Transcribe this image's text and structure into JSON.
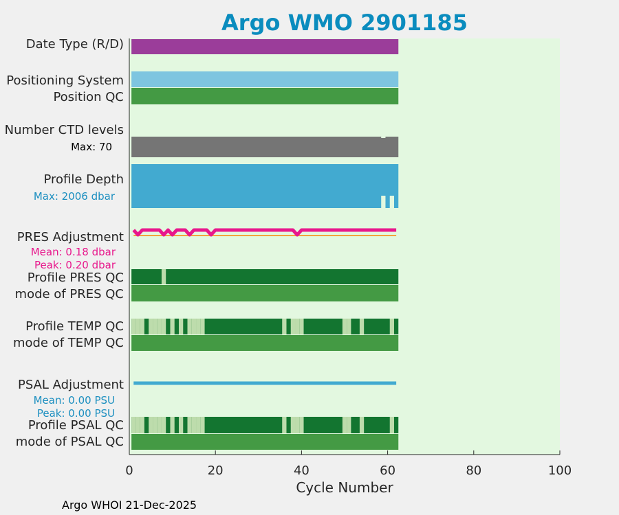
{
  "title": "Argo WMO 2901185",
  "footer": "Argo WHOI 21-Dec-2025",
  "colors": {
    "background": "#f0f0f0",
    "plot_bg": "#e3f8e0",
    "title": "#0a8cbe",
    "pres_note": "#e8178c",
    "psal_note": "#1c8fc0",
    "dark_green": "#137530",
    "mid_green": "#449a44",
    "light_green": "#bddcac"
  },
  "chart_data": {
    "type": "table",
    "xlabel": "Cycle Number",
    "xlim": [
      0,
      100
    ],
    "xticks": [
      "0",
      "20",
      "40",
      "60",
      "80",
      "100"
    ],
    "n_cycles": 62,
    "row_labels": {
      "date_type": "Date Type (R/D)",
      "positioning": "Positioning System",
      "position_qc": "Position QC",
      "ctd_levels": "Number CTD levels",
      "profile_depth": "Profile Depth",
      "pres_adjust": "PRES Adjustment",
      "profile_pres_qc": "Profile PRES QC",
      "mode_pres_qc": "mode of PRES QC",
      "profile_temp_qc": "Profile TEMP QC",
      "mode_temp_qc": "mode of TEMP QC",
      "psal_adjust": "PSAL Adjustment",
      "profile_psal_qc": "Profile PSAL QC",
      "mode_psal_qc": "mode of PSAL QC"
    },
    "notes": {
      "ctd_max": "Max: 70",
      "depth_max": "Max: 2006 dbar",
      "pres_mean": "Mean: 0.18 dbar",
      "pres_peak": "Peak: 0.20 dbar",
      "psal_mean": "Mean: 0.00 PSU",
      "psal_peak": "Peak: 0.00 PSU"
    },
    "date_type_color": "#9b3d9a",
    "positioning_color": "#7ec5e0",
    "ctd_color": "#757575",
    "depth_color": "#42aad0",
    "pres_adjust_color": "#e8178c",
    "pres_ref_color": "#f3a33c",
    "psal_adjust_color": "#42aad0",
    "ctd_levels": {
      "max": 70,
      "low_cycles": [
        59
      ]
    },
    "profile_depth": {
      "max": 2006,
      "low_cycles": [
        59,
        61
      ]
    },
    "pres_adjust_dip_cycles": [
      2,
      8,
      10,
      14,
      19,
      39
    ],
    "profile_pres_qc_light_cycles": [
      8
    ],
    "temp_psal_qc_light_ranges": [
      [
        1,
        3
      ],
      [
        5,
        8
      ],
      [
        10,
        10
      ],
      [
        12,
        12
      ],
      [
        14,
        17
      ],
      [
        36,
        36
      ],
      [
        38,
        40
      ],
      [
        50,
        51
      ],
      [
        54,
        54
      ],
      [
        61,
        61
      ]
    ]
  }
}
